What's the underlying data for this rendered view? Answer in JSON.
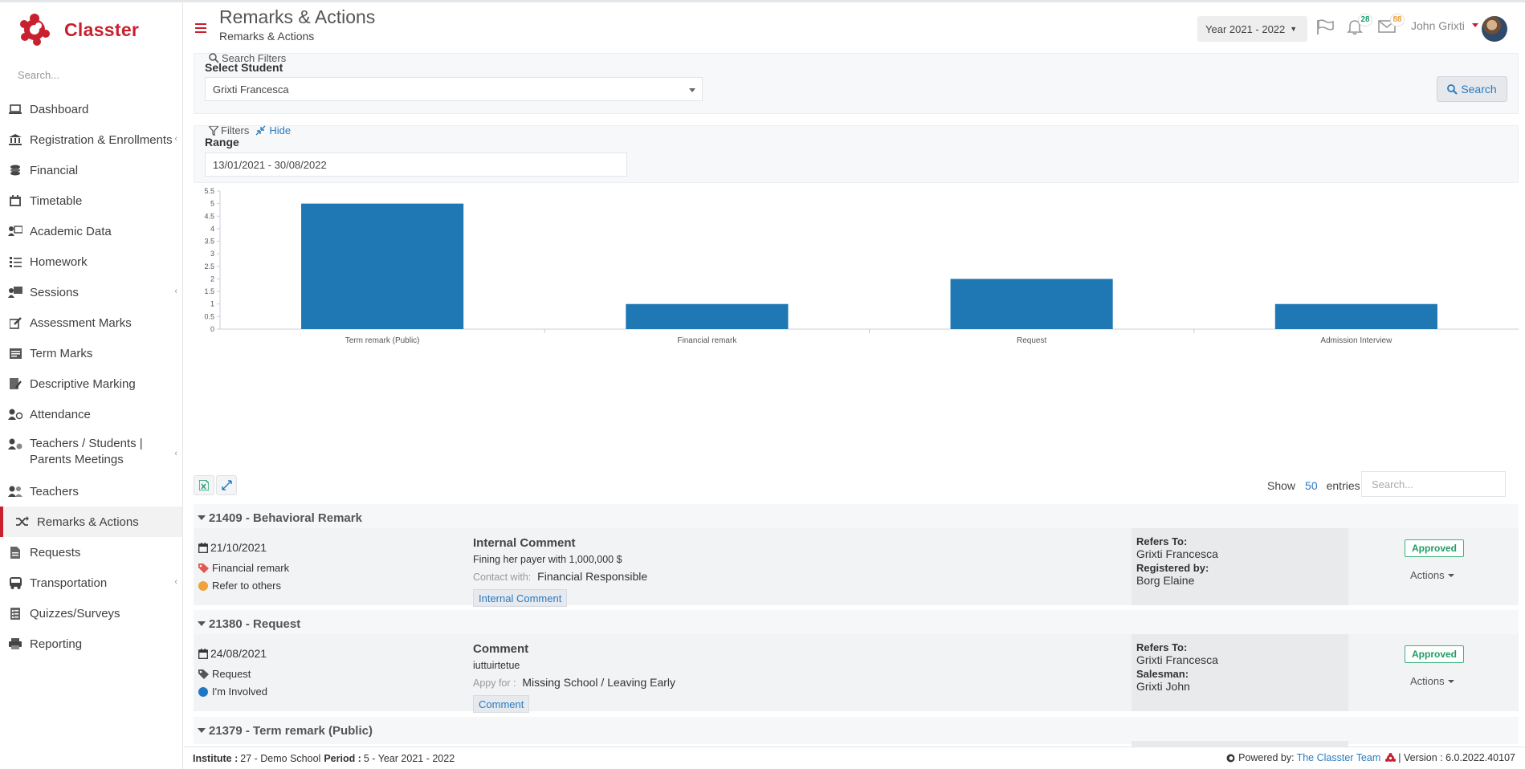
{
  "app": {
    "name": "Classter"
  },
  "sidebar": {
    "search_placeholder": "Search...",
    "items": [
      {
        "label": "Dashboard"
      },
      {
        "label": "Registration & Enrollments"
      },
      {
        "label": "Financial"
      },
      {
        "label": "Timetable"
      },
      {
        "label": "Academic Data"
      },
      {
        "label": "Homework"
      },
      {
        "label": "Sessions"
      },
      {
        "label": "Assessment Marks"
      },
      {
        "label": "Term Marks"
      },
      {
        "label": "Descriptive Marking"
      },
      {
        "label": "Attendance"
      },
      {
        "label": "Teachers / Students |\nParents Meetings"
      },
      {
        "label": "Teachers"
      },
      {
        "label": "Remarks & Actions"
      },
      {
        "label": "Requests"
      },
      {
        "label": "Transportation"
      },
      {
        "label": "Quizzes/Surveys"
      },
      {
        "label": "Reporting"
      }
    ]
  },
  "header": {
    "title": "Remarks & Actions",
    "subtitle": "Remarks & Actions",
    "year_selector": "Year 2021 - 2022",
    "notifications_count": "28",
    "messages_count": "88",
    "user_name": "John Grixti"
  },
  "search_filters": {
    "legend": "Search Filters",
    "select_student_label": "Select Student",
    "student_value": "Grixti Francesca",
    "search_button": "Search"
  },
  "filters": {
    "legend": "Filters",
    "hide_label": "Hide",
    "range_label": "Range",
    "range_value": "13/01/2021 - 30/08/2022"
  },
  "chart_data": {
    "type": "bar",
    "categories": [
      "Term remark (Public)",
      "Financial remark",
      "Request",
      "Admission Interview"
    ],
    "values": [
      5,
      1,
      2,
      1
    ],
    "ylim": [
      0,
      5.5
    ],
    "yticks": [
      "0",
      "0.5",
      "1",
      "1.5",
      "2",
      "2.5",
      "3",
      "3.5",
      "4",
      "4.5",
      "5",
      "5.5"
    ],
    "color": "#1f77b4"
  },
  "table": {
    "show_label": "Show",
    "entries_count": "50",
    "entries_label": "entries",
    "search_placeholder": "Search..."
  },
  "records": [
    {
      "header": "21409 - Behavioral Remark",
      "date": "21/10/2021",
      "tag": "Financial remark",
      "tag_color": "#e05a4f",
      "status": "Refer to others",
      "status_color": "#f0a23b",
      "title": "Internal Comment",
      "description": "Fining her payer with 1,000,000 $",
      "contact_label": "Contact with:",
      "contact_value": "Financial Responsible",
      "chip": "Internal Comment",
      "refers_label": "Refers To:",
      "refers_value": "Grixti Francesca",
      "second_label": "Registered by:",
      "second_value": "Borg Elaine",
      "state": "Approved",
      "actions": "Actions"
    },
    {
      "header": "21380 - Request",
      "date": "24/08/2021",
      "tag": "Request",
      "tag_color": "#555555",
      "status": "I'm Involved",
      "status_color": "#1f77c4",
      "title": "Comment",
      "description": "iuttuirtetue",
      "contact_label": "Appy for :",
      "contact_value": "Missing School / Leaving Early",
      "chip": "Comment",
      "refers_label": "Refers To:",
      "refers_value": "Grixti Francesca",
      "second_label": "Salesman:",
      "second_value": "Grixti John",
      "state": "Approved",
      "actions": "Actions"
    }
  ],
  "next_record_header": "21379 - Term remark (Public)",
  "footer": {
    "institute_label": "Institute :",
    "institute_value": "27 - Demo School",
    "period_label": "Period :",
    "period_value": "5 - Year 2021 - 2022",
    "powered_label": "Powered by:",
    "powered_link": "The Classter Team",
    "version": "| Version : 6.0.2022.40107"
  }
}
